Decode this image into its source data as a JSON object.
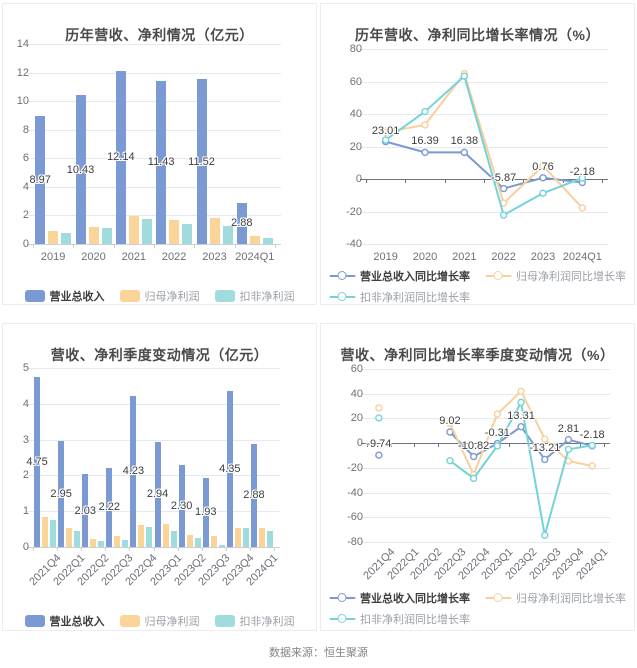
{
  "source_note": "数据来源：恒生聚源",
  "colors": {
    "revenue_blue": "#7b9ad3",
    "net_profit_orange": "#fbd499",
    "non_gaap_teal": "#a0dcdd",
    "line_orange": "#f8cf9d",
    "line_teal": "#73d3d8",
    "title_gray": "#4a4a4a",
    "axis_gray": "#6e7079"
  },
  "chart_data": [
    {
      "type": "bar",
      "title": "历年营收、净利情况（亿元）",
      "categories": [
        "2019",
        "2020",
        "2021",
        "2022",
        "2023",
        "2024Q1"
      ],
      "ylim": [
        0,
        14
      ],
      "ystep": 2,
      "yticks": [
        "0",
        "2",
        "4",
        "6",
        "8",
        "10",
        "12",
        "14"
      ],
      "grid": true,
      "legend": {
        "position": "bottom",
        "rows": [
          [
            0,
            1,
            2
          ]
        ]
      },
      "xlabel_rotate": false,
      "series": [
        {
          "name": "营业总收入",
          "color": "#7b9ad3",
          "labeled": true,
          "values": [
            8.97,
            10.43,
            12.14,
            11.43,
            11.52,
            2.88
          ]
        },
        {
          "name": "归母净利润",
          "color": "#fbd499",
          "labeled": false,
          "values": [
            0.89,
            1.19,
            1.96,
            1.67,
            1.83,
            0.53
          ]
        },
        {
          "name": "扣非净利润",
          "color": "#a0dcdd",
          "labeled": false,
          "values": [
            0.77,
            1.09,
            1.77,
            1.38,
            1.27,
            0.44
          ]
        }
      ]
    },
    {
      "type": "line",
      "title": "历年营收、净利同比增长率情况（%）",
      "categories": [
        "2019",
        "2020",
        "2021",
        "2022",
        "2023",
        "2024Q1"
      ],
      "ylim": [
        -40,
        80
      ],
      "ystep": 20,
      "yticks": [
        "-40",
        "-20",
        "0",
        "20",
        "40",
        "60",
        "80"
      ],
      "grid": true,
      "legend": {
        "position": "bottom",
        "rows": [
          [
            0,
            1
          ],
          [
            2
          ]
        ]
      },
      "xlabel_rotate": false,
      "series": [
        {
          "name": "营业总收入同比增长率",
          "color": "#7b9ad3",
          "labeled": true,
          "values": [
            23.01,
            16.39,
            16.38,
            -5.87,
            0.76,
            -2.18
          ]
        },
        {
          "name": "归母净利润同比增长率",
          "color": "#f8cf9d",
          "labeled": false,
          "values": [
            28.8,
            33.3,
            64.9,
            -14.8,
            8.1,
            -17.8
          ]
        },
        {
          "name": "扣非净利润同比增长率",
          "color": "#73d3d8",
          "labeled": false,
          "values": [
            24.0,
            41.5,
            63.3,
            -22.2,
            -8.7,
            0.6
          ]
        }
      ]
    },
    {
      "type": "bar",
      "title": "营收、净利季度变动情况（亿元）",
      "categories": [
        "2021Q4",
        "2022Q1",
        "2022Q2",
        "2022Q3",
        "2022Q4",
        "2023Q1",
        "2023Q2",
        "2023Q3",
        "2023Q4",
        "2024Q1"
      ],
      "ylim": [
        0,
        5
      ],
      "ystep": 1,
      "yticks": [
        "0",
        "1",
        "2",
        "3",
        "4",
        "5"
      ],
      "grid": true,
      "legend": {
        "position": "bottom",
        "rows": [
          [
            0,
            1,
            2
          ]
        ]
      },
      "xlabel_rotate": true,
      "series": [
        {
          "name": "营业总收入",
          "color": "#7b9ad3",
          "labeled": true,
          "values": [
            4.75,
            2.95,
            2.03,
            2.22,
            4.23,
            2.94,
            2.3,
            1.93,
            4.35,
            2.88
          ]
        },
        {
          "name": "归母净利润",
          "color": "#fbd499",
          "labeled": false,
          "values": [
            0.83,
            0.53,
            0.22,
            0.3,
            0.62,
            0.65,
            0.33,
            0.31,
            0.54,
            0.53
          ]
        },
        {
          "name": "扣非净利润",
          "color": "#a0dcdd",
          "labeled": false,
          "values": [
            0.75,
            0.46,
            0.18,
            0.19,
            0.55,
            0.45,
            0.24,
            0.05,
            0.53,
            0.44
          ]
        }
      ]
    },
    {
      "type": "line",
      "title": "营收、净利同比增长率季度变动情况（%）",
      "categories": [
        "2021Q4",
        "2022Q1",
        "2022Q2",
        "2022Q3",
        "2022Q4",
        "2023Q1",
        "2023Q2",
        "2023Q3",
        "2023Q4",
        "2024Q1"
      ],
      "ylim": [
        -80,
        60
      ],
      "ystep": 20,
      "yticks": [
        "-80",
        "-60",
        "-40",
        "-20",
        "0",
        "20",
        "40",
        "60"
      ],
      "grid": true,
      "legend": {
        "position": "bottom",
        "rows": [
          [
            0,
            1
          ],
          [
            2
          ]
        ]
      },
      "xlabel_rotate": true,
      "series": [
        {
          "name": "营业总收入同比增长率",
          "color": "#7b9ad3",
          "labeled": true,
          "values": [
            -9.74,
            null,
            null,
            9.02,
            -10.82,
            -0.31,
            13.31,
            -13.21,
            2.81,
            -2.18
          ]
        },
        {
          "name": "归母净利润同比增长率",
          "color": "#f8cf9d",
          "labeled": false,
          "values": [
            28.5,
            null,
            null,
            16.0,
            -25.5,
            23.5,
            42.0,
            3.3,
            -14.5,
            -18.4
          ]
        },
        {
          "name": "扣非净利润同比增长率",
          "color": "#73d3d8",
          "labeled": false,
          "values": [
            20.4,
            null,
            null,
            -14.2,
            -28.5,
            -2.2,
            33.0,
            -74.5,
            -5.0,
            -1.8
          ]
        }
      ]
    }
  ]
}
